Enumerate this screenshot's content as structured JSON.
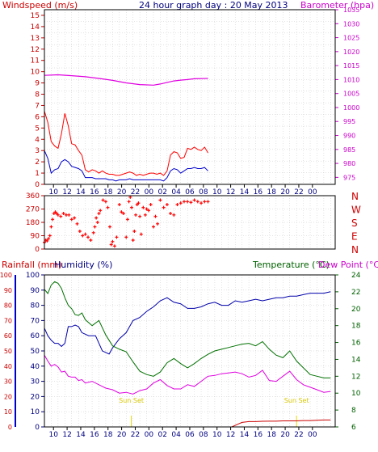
{
  "chart_data": [
    {
      "type": "line",
      "title": "24 hour graph day : 20 May 2013",
      "left_axis_label": "Windspeed (m/s)",
      "right_axis_label": "Barometer (hpa)",
      "x_ticks": [
        "10",
        "12",
        "14",
        "16",
        "18",
        "20",
        "22",
        "00",
        "02",
        "04",
        "06",
        "08",
        "10",
        "12",
        "14",
        "16",
        "18",
        "20",
        "22",
        "00"
      ],
      "left_ylim": [
        0,
        15.5
      ],
      "left_ticks": [
        0,
        1,
        2,
        3,
        4,
        5,
        6,
        7,
        8,
        9,
        10,
        11,
        12,
        13,
        14,
        15
      ],
      "right_ylim": [
        972.5,
        1035
      ],
      "right_ticks": [
        975,
        980,
        985,
        990,
        995,
        1000,
        1005,
        1010,
        1015,
        1020,
        1025,
        1030,
        1035
      ],
      "grid": true,
      "colors": {
        "gust": "#ff0000",
        "wind": "#0000cc",
        "barometer": "#e000e0"
      },
      "series": [
        {
          "key": "gust",
          "axis": "left",
          "hours": [
            0,
            0.5,
            1,
            1.5,
            2,
            2.5,
            3,
            3.5,
            4,
            4.5,
            5,
            5.5,
            6,
            6.5,
            7,
            7.5,
            8,
            8.5,
            9,
            9.5,
            10,
            10.5,
            11,
            11.5,
            12,
            12.5,
            13,
            13.5,
            14,
            14.5,
            15,
            15.5,
            16,
            16.5,
            17,
            17.5,
            18,
            18.5,
            19,
            19.5,
            20,
            20.5,
            21,
            21.5,
            22,
            22.5,
            23,
            23.5,
            24
          ],
          "values": [
            6.5,
            5.5,
            3.8,
            3.4,
            3.2,
            4.5,
            6.3,
            5.2,
            3.6,
            3.5,
            3.0,
            2.6,
            1.3,
            1.1,
            1.3,
            1.2,
            1.0,
            1.2,
            1.0,
            0.9,
            0.9,
            0.8,
            0.8,
            0.9,
            1.0,
            1.1,
            1.0,
            0.8,
            0.9,
            0.8,
            0.9,
            1.0,
            1.0,
            0.9,
            1.0,
            0.8,
            1.2,
            2.6,
            2.9,
            2.8,
            2.3,
            2.4,
            3.2,
            3.1,
            3.3,
            3.1,
            3.0,
            3.3,
            2.8
          ]
        },
        {
          "key": "wind",
          "axis": "left",
          "hours": [
            0,
            0.5,
            1,
            1.5,
            2,
            2.5,
            3,
            3.5,
            4,
            4.5,
            5,
            5.5,
            6,
            6.5,
            7,
            7.5,
            8,
            8.5,
            9,
            9.5,
            10,
            10.5,
            11,
            11.5,
            12,
            12.5,
            13,
            13.5,
            14,
            14.5,
            15,
            15.5,
            16,
            16.5,
            17,
            17.5,
            18,
            18.5,
            19,
            19.5,
            20,
            20.5,
            21,
            21.5,
            22,
            22.5,
            23,
            23.5,
            24
          ],
          "values": [
            3.0,
            2.3,
            1.0,
            1.3,
            1.4,
            2.0,
            2.2,
            2.0,
            1.6,
            1.5,
            1.4,
            1.2,
            0.6,
            0.6,
            0.6,
            0.5,
            0.5,
            0.5,
            0.5,
            0.4,
            0.4,
            0.3,
            0.4,
            0.4,
            0.4,
            0.5,
            0.4,
            0.4,
            0.4,
            0.4,
            0.4,
            0.4,
            0.4,
            0.4,
            0.4,
            0.3,
            0.6,
            1.2,
            1.4,
            1.3,
            1.0,
            1.2,
            1.4,
            1.4,
            1.5,
            1.4,
            1.4,
            1.5,
            1.2
          ]
        },
        {
          "key": "barometer",
          "axis": "right",
          "hours": [
            0,
            2,
            4,
            6,
            8,
            10,
            12,
            14,
            16,
            17,
            18,
            19,
            20,
            21,
            22,
            24
          ],
          "values": [
            1011.5,
            1011.7,
            1011.4,
            1011.0,
            1010.4,
            1009.7,
            1008.8,
            1008.2,
            1008.0,
            1008.4,
            1009.0,
            1009.5,
            1009.8,
            1010.0,
            1010.3,
            1010.4
          ]
        }
      ]
    },
    {
      "type": "scatter",
      "left_axis_label": "",
      "left_ylim": [
        0,
        360
      ],
      "left_ticks": [
        0,
        90,
        180,
        270,
        360
      ],
      "right_labels": [
        "N",
        "W",
        "S",
        "E",
        "N"
      ],
      "grid": true,
      "color": "#ff0000",
      "series": [
        {
          "key": "direction",
          "hours": [
            0,
            0.2,
            0.4,
            0.6,
            0.8,
            1,
            1.2,
            1.4,
            1.6,
            1.8,
            2,
            2.4,
            2.8,
            3.2,
            3.6,
            4,
            4.4,
            4.8,
            5.2,
            5.6,
            6,
            6.4,
            6.8,
            7.2,
            7.4,
            7.6,
            7.8,
            8,
            8.2,
            8.6,
            9,
            9.3,
            9.6,
            9.8,
            10,
            10.3,
            10.6,
            11,
            11.3,
            11.6,
            12,
            12.2,
            12.4,
            12.6,
            12.8,
            13,
            13.2,
            13.4,
            13.6,
            13.8,
            14,
            14.2,
            14.5,
            14.8,
            15,
            15.3,
            15.6,
            16,
            16.3,
            16.6,
            17,
            17.5,
            18,
            18.5,
            19,
            19.5,
            20,
            20.5,
            21,
            21.5,
            22,
            22.5,
            23,
            23.5,
            24
          ],
          "values": [
            45,
            60,
            55,
            70,
            90,
            150,
            200,
            240,
            250,
            240,
            230,
            220,
            240,
            230,
            230,
            200,
            210,
            170,
            120,
            90,
            100,
            80,
            60,
            110,
            150,
            210,
            180,
            240,
            260,
            330,
            320,
            280,
            150,
            30,
            50,
            20,
            80,
            300,
            250,
            240,
            80,
            200,
            320,
            350,
            280,
            60,
            120,
            230,
            300,
            310,
            220,
            100,
            280,
            230,
            270,
            260,
            300,
            150,
            220,
            170,
            330,
            280,
            300,
            240,
            230,
            300,
            310,
            320,
            320,
            315,
            330,
            320,
            310,
            320,
            320
          ]
        }
      ]
    },
    {
      "type": "line",
      "left_axis_label_1": "Rainfall (mm)",
      "left_axis_label_2": "Humidity (%)",
      "right_axis_label_1": "Temperature (°C)",
      "right_axis_label_2": "Dew Point (°C)",
      "x_ticks": [
        "10",
        "12",
        "14",
        "16",
        "18",
        "20",
        "22",
        "00",
        "02",
        "04",
        "06",
        "08",
        "10",
        "12",
        "14",
        "16",
        "18",
        "20",
        "22",
        "00"
      ],
      "left_ylim": [
        0,
        100
      ],
      "left_ticks": [
        0,
        10,
        20,
        30,
        40,
        50,
        60,
        70,
        80,
        90,
        100
      ],
      "right_ylim": [
        6,
        24
      ],
      "right_ticks": [
        6,
        8,
        10,
        12,
        14,
        16,
        18,
        20,
        22,
        24
      ],
      "annotations": [
        {
          "text": "Sun Set",
          "hour": 12.75
        },
        {
          "text": "Sun Set",
          "hour": 37
        }
      ],
      "grid": true,
      "colors": {
        "humidity": "#0000aa",
        "temperature": "#007000",
        "dewpoint": "#e000e0",
        "rainfall": "#cc0000",
        "sunset": "#e8d800"
      },
      "series": [
        {
          "key": "humidity",
          "axis": "left",
          "hours": [
            0,
            0.5,
            1,
            1.5,
            2,
            2.5,
            3,
            3.5,
            4,
            4.5,
            5,
            5.5,
            6,
            6.5,
            7,
            7.5,
            8,
            8.5,
            9,
            9.5,
            10,
            11,
            12,
            13,
            14,
            15,
            16,
            17,
            18,
            19,
            20,
            21,
            22,
            23,
            24,
            25,
            26,
            27,
            28,
            29,
            30,
            31,
            32,
            33,
            34,
            35,
            36,
            37,
            38,
            39,
            40,
            41,
            42
          ],
          "values": [
            65,
            60,
            57,
            55,
            55,
            53,
            55,
            66,
            66,
            67,
            66,
            62,
            61,
            60,
            60,
            60,
            55,
            50,
            49,
            48,
            52,
            58,
            62,
            70,
            72,
            76,
            79,
            83,
            85,
            82,
            81,
            78,
            78,
            79,
            81,
            82,
            80,
            80,
            83,
            82,
            83,
            84,
            83,
            84,
            85,
            85,
            86,
            86,
            87,
            88,
            88,
            88,
            89
          ]
        },
        {
          "key": "temperature",
          "axis": "right",
          "hours": [
            0,
            0.5,
            1,
            1.5,
            2,
            2.5,
            3,
            3.5,
            4,
            4.5,
            5,
            5.5,
            6,
            7,
            8,
            9,
            10,
            11,
            12,
            13,
            14,
            15,
            16,
            17,
            18,
            19,
            20,
            21,
            22,
            23,
            24,
            25,
            26,
            27,
            28,
            29,
            30,
            31,
            32,
            33,
            34,
            35,
            36,
            37,
            38,
            39,
            40,
            41,
            42
          ],
          "values": [
            22.3,
            21.8,
            22.8,
            23.2,
            23.0,
            22.4,
            21.3,
            20.4,
            20.0,
            19.3,
            19.2,
            19.5,
            18.7,
            18.0,
            18.6,
            16.9,
            15.6,
            15.2,
            14.9,
            13.7,
            12.6,
            12.2,
            12.0,
            12.5,
            13.6,
            14.1,
            13.5,
            13.0,
            13.5,
            14.1,
            14.6,
            15.0,
            15.2,
            15.4,
            15.6,
            15.8,
            15.9,
            15.6,
            16.1,
            15.2,
            14.5,
            14.2,
            15.0,
            13.8,
            13.0,
            12.2,
            12.0,
            11.8,
            11.8
          ]
        },
        {
          "key": "dewpoint",
          "axis": "right",
          "hours": [
            0,
            0.5,
            1,
            1.5,
            2,
            2.5,
            3,
            3.5,
            4,
            4.5,
            5,
            5.5,
            6,
            7,
            8,
            9,
            10,
            11,
            12,
            13,
            14,
            15,
            16,
            17,
            18,
            19,
            20,
            21,
            22,
            23,
            24,
            25,
            26,
            27,
            28,
            29,
            30,
            31,
            32,
            33,
            34,
            35,
            36,
            37,
            38,
            39,
            40,
            41,
            42
          ],
          "values": [
            14.5,
            13.8,
            13.2,
            13.4,
            13.1,
            12.5,
            12.6,
            12.0,
            11.9,
            11.9,
            11.5,
            11.6,
            11.2,
            11.4,
            11.0,
            10.6,
            10.4,
            10.0,
            10.1,
            9.9,
            10.3,
            10.5,
            11.2,
            11.6,
            10.9,
            10.5,
            10.5,
            11.0,
            10.8,
            11.4,
            12.0,
            12.1,
            12.3,
            12.4,
            12.5,
            12.3,
            11.9,
            12.1,
            12.7,
            11.5,
            11.4,
            12.0,
            12.6,
            11.6,
            11.0,
            10.7,
            10.4,
            10.1,
            10.2
          ]
        },
        {
          "key": "rainfall",
          "axis": "left",
          "hours": [
            0,
            27.5,
            28,
            28.5,
            29,
            30,
            31,
            32,
            33,
            34,
            35,
            36,
            37,
            38,
            39,
            40,
            41,
            42
          ],
          "values": [
            0,
            0,
            1,
            2,
            3,
            3.5,
            3.5,
            3.7,
            3.8,
            3.8,
            4,
            4,
            4,
            4.2,
            4.2,
            4.4,
            4.6,
            4.6
          ]
        }
      ]
    }
  ]
}
